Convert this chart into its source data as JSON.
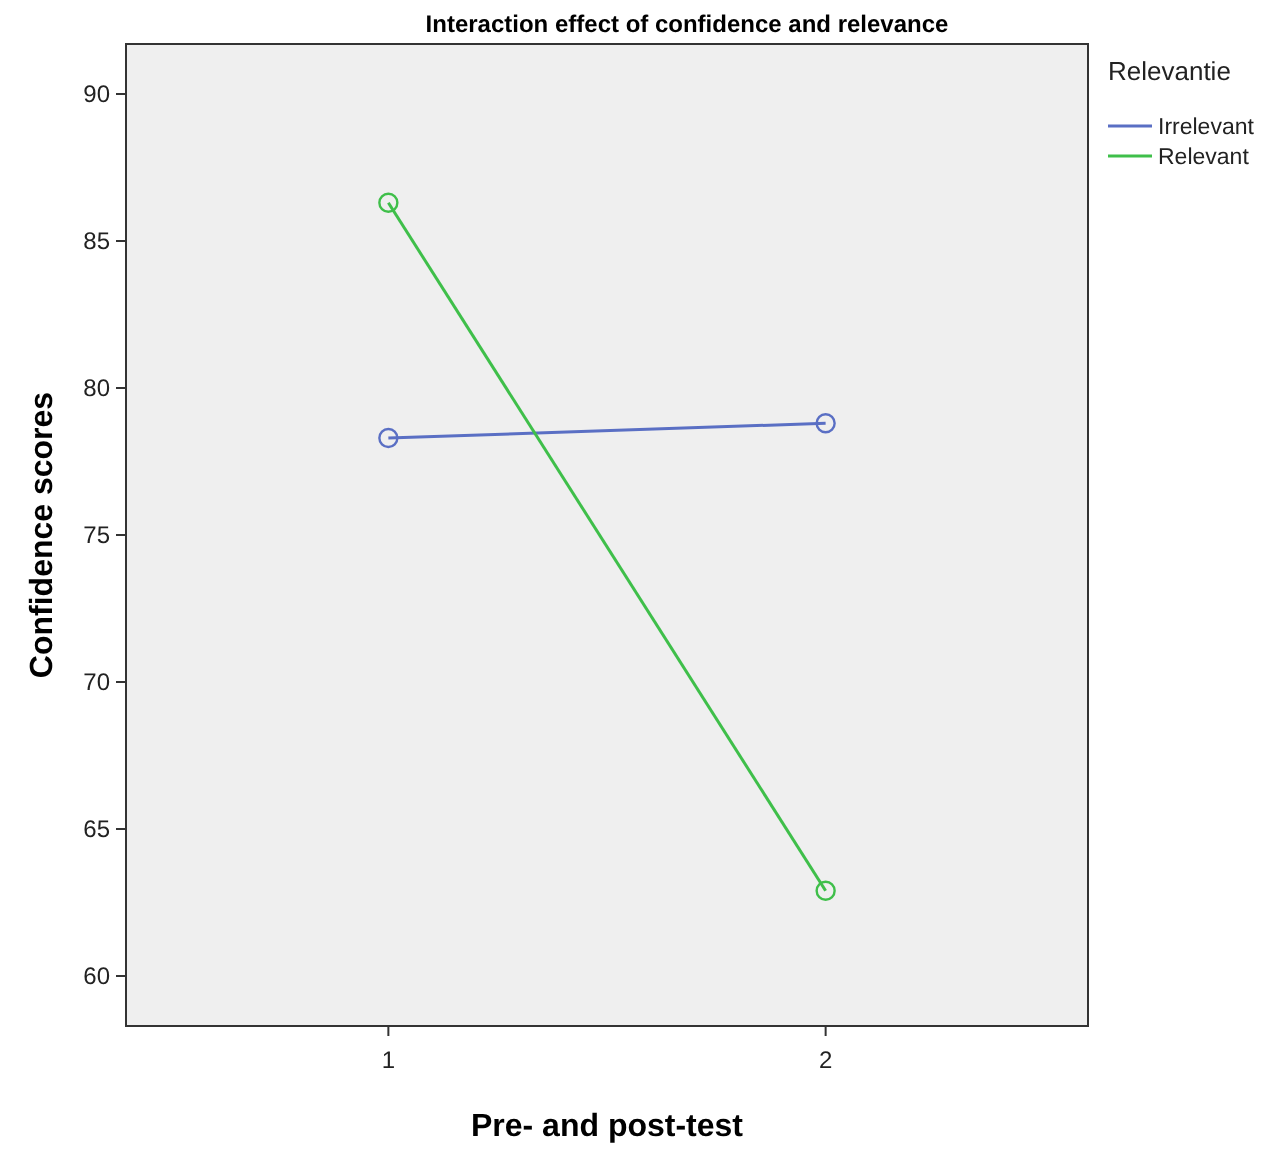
{
  "chart_data": {
    "type": "line",
    "title": "Interaction effect of confidence and relevance",
    "xlabel": "Pre- and post-test",
    "ylabel": "Confidence scores",
    "legend_title": "Relevantie",
    "categories": [
      "1",
      "2"
    ],
    "series": [
      {
        "name": "Irrelevant",
        "color": "#5a6fc4",
        "values": [
          78.3,
          78.8
        ]
      },
      {
        "name": "Relevant",
        "color": "#3fbf4a",
        "values": [
          86.3,
          62.9
        ]
      }
    ],
    "ylim": [
      58.3,
      91.7
    ],
    "yticks": [
      60,
      65,
      70,
      75,
      80,
      85,
      90
    ],
    "marker": "circle",
    "legend": "top right",
    "grid": false
  }
}
